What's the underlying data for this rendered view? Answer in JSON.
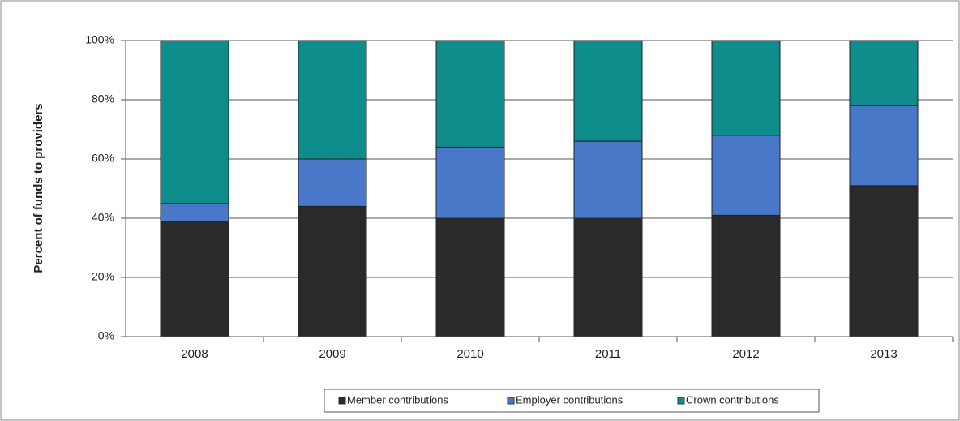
{
  "chart_data": {
    "type": "stacked_bar",
    "y_label": "Percent of funds to providers",
    "categories": [
      "2008",
      "2009",
      "2010",
      "2011",
      "2012",
      "2013"
    ],
    "series": [
      {
        "name": "Member contributions",
        "color": "#2a2a2a",
        "values": [
          39,
          44,
          40,
          40,
          41,
          51
        ]
      },
      {
        "name": "Employer contributions",
        "color": "#4a78c8",
        "values": [
          6,
          16,
          24,
          26,
          27,
          27
        ]
      },
      {
        "name": "Crown contributions",
        "color": "#0f8c8c",
        "values": [
          55,
          40,
          36,
          34,
          32,
          22
        ]
      }
    ],
    "ylim": [
      0,
      100
    ],
    "yticks": [
      {
        "value": 0,
        "label": "0%"
      },
      {
        "value": 20,
        "label": "20%"
      },
      {
        "value": 40,
        "label": "40%"
      },
      {
        "value": 60,
        "label": "60%"
      },
      {
        "value": 80,
        "label": "80%"
      },
      {
        "value": 100,
        "label": "100%"
      }
    ],
    "grid": true,
    "legend": "bottom"
  }
}
